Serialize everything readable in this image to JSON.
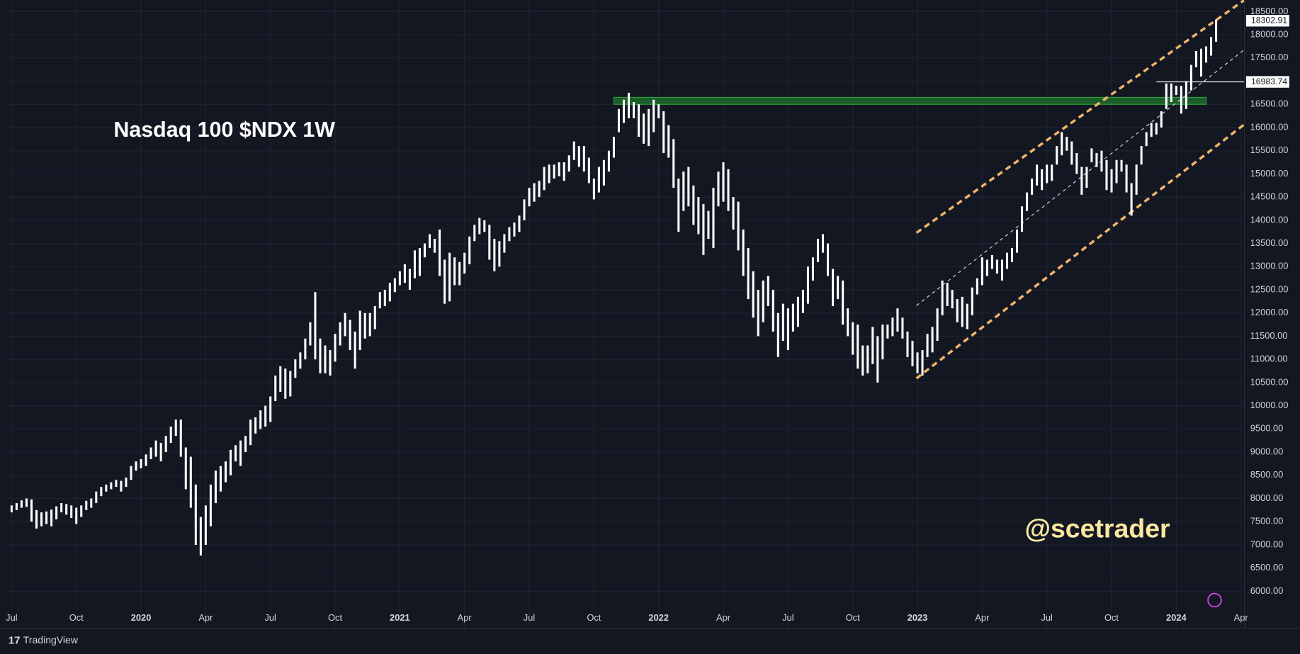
{
  "chart_data": {
    "type": "range-bar",
    "title": "Nasdaq 100 $NDX 1W",
    "watermark": "@scetrader",
    "brand": "TradingView",
    "background": "#131722",
    "bar_color": "#ffffff",
    "grid": true,
    "xlim": [
      -1,
      247.7
    ],
    "ylim": [
      5200,
      18750
    ],
    "xticks": [
      {
        "value": 0,
        "label": "Jul"
      },
      {
        "value": 13,
        "label": "Oct"
      },
      {
        "value": 26,
        "label": "2020"
      },
      {
        "value": 39,
        "label": "Apr"
      },
      {
        "value": 52,
        "label": "Jul"
      },
      {
        "value": 65,
        "label": "Oct"
      },
      {
        "value": 78,
        "label": "2021"
      },
      {
        "value": 91,
        "label": "Apr"
      },
      {
        "value": 104,
        "label": "Jul"
      },
      {
        "value": 117,
        "label": "Oct"
      },
      {
        "value": 130,
        "label": "2022"
      },
      {
        "value": 143,
        "label": "Apr"
      },
      {
        "value": 156,
        "label": "Jul"
      },
      {
        "value": 169,
        "label": "Oct"
      },
      {
        "value": 182,
        "label": "2023"
      },
      {
        "value": 195,
        "label": "Apr"
      },
      {
        "value": 208,
        "label": "Jul"
      },
      {
        "value": 221,
        "label": "Oct"
      },
      {
        "value": 234,
        "label": "2024"
      },
      {
        "value": 247,
        "label": "Apr"
      }
    ],
    "yticks": [
      {
        "value": 6000,
        "label": "6000.00"
      },
      {
        "value": 6500,
        "label": "6500.00"
      },
      {
        "value": 7000,
        "label": "7000.00"
      },
      {
        "value": 7500,
        "label": "7500.00"
      },
      {
        "value": 8000,
        "label": "8000.00"
      },
      {
        "value": 8500,
        "label": "8500.00"
      },
      {
        "value": 9000,
        "label": "9000.00"
      },
      {
        "value": 9500,
        "label": "9500.00"
      },
      {
        "value": 10000,
        "label": "10000.00"
      },
      {
        "value": 10500,
        "label": "10500.00"
      },
      {
        "value": 11000,
        "label": "11000.00"
      },
      {
        "value": 11500,
        "label": "11500.00"
      },
      {
        "value": 12000,
        "label": "12000.00"
      },
      {
        "value": 12500,
        "label": "12500.00"
      },
      {
        "value": 13000,
        "label": "13000.00"
      },
      {
        "value": 13500,
        "label": "13500.00"
      },
      {
        "value": 14000,
        "label": "14000.00"
      },
      {
        "value": 14500,
        "label": "14500.00"
      },
      {
        "value": 15000,
        "label": "15000.00"
      },
      {
        "value": 15500,
        "label": "15500.00"
      },
      {
        "value": 16000,
        "label": "16000.00"
      },
      {
        "value": 16500,
        "label": "16500.00"
      },
      {
        "value": 17000,
        "label": "17000.00"
      },
      {
        "value": 17500,
        "label": "17500.00"
      },
      {
        "value": 18000,
        "label": "18000.00"
      },
      {
        "value": 18500,
        "label": "18500.00"
      }
    ],
    "ranges": [
      [
        7700,
        7850
      ],
      [
        7750,
        7900
      ],
      [
        7800,
        7960
      ],
      [
        7820,
        8000
      ],
      [
        7500,
        7980
      ],
      [
        7350,
        7750
      ],
      [
        7400,
        7700
      ],
      [
        7450,
        7720
      ],
      [
        7400,
        7760
      ],
      [
        7550,
        7830
      ],
      [
        7700,
        7900
      ],
      [
        7650,
        7880
      ],
      [
        7580,
        7850
      ],
      [
        7450,
        7800
      ],
      [
        7600,
        7850
      ],
      [
        7750,
        7950
      ],
      [
        7800,
        8000
      ],
      [
        7900,
        8150
      ],
      [
        8050,
        8250
      ],
      [
        8150,
        8300
      ],
      [
        8200,
        8350
      ],
      [
        8250,
        8400
      ],
      [
        8150,
        8380
      ],
      [
        8250,
        8450
      ],
      [
        8400,
        8700
      ],
      [
        8600,
        8800
      ],
      [
        8650,
        8850
      ],
      [
        8700,
        8950
      ],
      [
        8850,
        9100
      ],
      [
        8900,
        9250
      ],
      [
        8800,
        9200
      ],
      [
        9000,
        9350
      ],
      [
        9200,
        9550
      ],
      [
        9350,
        9700
      ],
      [
        8900,
        9700
      ],
      [
        8200,
        9100
      ],
      [
        7800,
        8900
      ],
      [
        7000,
        8300
      ],
      [
        6770,
        7600
      ],
      [
        7000,
        7850
      ],
      [
        7400,
        8300
      ],
      [
        7900,
        8600
      ],
      [
        8150,
        8700
      ],
      [
        8350,
        8800
      ],
      [
        8500,
        9050
      ],
      [
        8800,
        9150
      ],
      [
        8700,
        9250
      ],
      [
        9000,
        9350
      ],
      [
        9150,
        9700
      ],
      [
        9400,
        9750
      ],
      [
        9500,
        9900
      ],
      [
        9550,
        10000
      ],
      [
        9650,
        10200
      ],
      [
        10100,
        10650
      ],
      [
        10300,
        10850
      ],
      [
        10150,
        10800
      ],
      [
        10200,
        10750
      ],
      [
        10600,
        11000
      ],
      [
        10800,
        11150
      ],
      [
        11000,
        11450
      ],
      [
        11300,
        11800
      ],
      [
        11000,
        12450
      ],
      [
        10700,
        11450
      ],
      [
        10700,
        11300
      ],
      [
        10650,
        11200
      ],
      [
        10950,
        11550
      ],
      [
        11300,
        11800
      ],
      [
        11500,
        12000
      ],
      [
        11200,
        11850
      ],
      [
        10800,
        11600
      ],
      [
        11200,
        12050
      ],
      [
        11450,
        12000
      ],
      [
        11500,
        12000
      ],
      [
        11650,
        12150
      ],
      [
        12100,
        12450
      ],
      [
        12150,
        12500
      ],
      [
        12250,
        12650
      ],
      [
        12450,
        12750
      ],
      [
        12600,
        12900
      ],
      [
        12650,
        13050
      ],
      [
        12500,
        12950
      ],
      [
        12750,
        13350
      ],
      [
        12800,
        13400
      ],
      [
        13200,
        13500
      ],
      [
        13400,
        13700
      ],
      [
        13300,
        13600
      ],
      [
        12800,
        13800
      ],
      [
        12200,
        13150
      ],
      [
        12250,
        13300
      ],
      [
        12600,
        13200
      ],
      [
        12600,
        13100
      ],
      [
        12850,
        13300
      ],
      [
        13050,
        13650
      ],
      [
        13550,
        13900
      ],
      [
        13700,
        14050
      ],
      [
        13750,
        14000
      ],
      [
        13150,
        13900
      ],
      [
        12900,
        13600
      ],
      [
        13000,
        13550
      ],
      [
        13300,
        13700
      ],
      [
        13550,
        13850
      ],
      [
        13650,
        13950
      ],
      [
        13750,
        14100
      ],
      [
        14000,
        14450
      ],
      [
        14300,
        14700
      ],
      [
        14400,
        14800
      ],
      [
        14500,
        14850
      ],
      [
        14650,
        15150
      ],
      [
        14800,
        15200
      ],
      [
        14900,
        15200
      ],
      [
        14950,
        15250
      ],
      [
        14850,
        15250
      ],
      [
        15050,
        15400
      ],
      [
        15300,
        15700
      ],
      [
        15150,
        15600
      ],
      [
        15050,
        15600
      ],
      [
        14800,
        15350
      ],
      [
        14450,
        14900
      ],
      [
        14600,
        15150
      ],
      [
        14750,
        15300
      ],
      [
        15050,
        15500
      ],
      [
        15350,
        15800
      ],
      [
        15900,
        16400
      ],
      [
        16100,
        16600
      ],
      [
        16200,
        16750
      ],
      [
        16200,
        16550
      ],
      [
        15800,
        16500
      ],
      [
        15650,
        16300
      ],
      [
        15600,
        16400
      ],
      [
        15900,
        16600
      ],
      [
        16200,
        16500
      ],
      [
        15450,
        16350
      ],
      [
        15350,
        16050
      ],
      [
        14700,
        15750
      ],
      [
        13750,
        14900
      ],
      [
        14200,
        15050
      ],
      [
        14300,
        15150
      ],
      [
        13900,
        14750
      ],
      [
        13700,
        14500
      ],
      [
        13250,
        14350
      ],
      [
        13600,
        14200
      ],
      [
        13400,
        14700
      ],
      [
        14300,
        15050
      ],
      [
        14400,
        15250
      ],
      [
        14200,
        15100
      ],
      [
        13800,
        14500
      ],
      [
        13350,
        14400
      ],
      [
        12800,
        13800
      ],
      [
        12300,
        13400
      ],
      [
        11900,
        12900
      ],
      [
        11500,
        12500
      ],
      [
        11800,
        12700
      ],
      [
        12150,
        12800
      ],
      [
        11600,
        12500
      ],
      [
        11050,
        12000
      ],
      [
        11400,
        12200
      ],
      [
        11200,
        12100
      ],
      [
        11600,
        12200
      ],
      [
        11700,
        12350
      ],
      [
        12000,
        12500
      ],
      [
        12200,
        13000
      ],
      [
        12700,
        13200
      ],
      [
        13100,
        13600
      ],
      [
        13300,
        13700
      ],
      [
        12800,
        13500
      ],
      [
        12150,
        12950
      ],
      [
        12300,
        12800
      ],
      [
        11750,
        12700
      ],
      [
        11500,
        12100
      ],
      [
        11100,
        11800
      ],
      [
        10800,
        11750
      ],
      [
        10650,
        11300
      ],
      [
        10700,
        11300
      ],
      [
        10900,
        11700
      ],
      [
        10500,
        11500
      ],
      [
        11000,
        11750
      ],
      [
        11450,
        11750
      ],
      [
        11500,
        11900
      ],
      [
        11600,
        12100
      ],
      [
        11450,
        11900
      ],
      [
        11050,
        11600
      ],
      [
        10850,
        11400
      ],
      [
        10700,
        11150
      ],
      [
        10650,
        11200
      ],
      [
        11050,
        11550
      ],
      [
        11150,
        11700
      ],
      [
        11400,
        12100
      ],
      [
        11950,
        12700
      ],
      [
        12150,
        12650
      ],
      [
        12100,
        12500
      ],
      [
        11800,
        12300
      ],
      [
        11700,
        12350
      ],
      [
        11650,
        12200
      ],
      [
        11950,
        12550
      ],
      [
        12400,
        12750
      ],
      [
        12600,
        13200
      ],
      [
        12800,
        13150
      ],
      [
        12950,
        13250
      ],
      [
        12850,
        13150
      ],
      [
        12700,
        13150
      ],
      [
        12950,
        13300
      ],
      [
        13100,
        13400
      ],
      [
        13300,
        13800
      ],
      [
        13750,
        14300
      ],
      [
        14200,
        14600
      ],
      [
        14550,
        14900
      ],
      [
        14750,
        15200
      ],
      [
        14650,
        15100
      ],
      [
        14800,
        15200
      ],
      [
        14850,
        15200
      ],
      [
        15200,
        15600
      ],
      [
        15400,
        15900
      ],
      [
        15500,
        15800
      ],
      [
        15200,
        15700
      ],
      [
        15000,
        15450
      ],
      [
        14550,
        15150
      ],
      [
        14700,
        15150
      ],
      [
        15250,
        15550
      ],
      [
        15150,
        15450
      ],
      [
        15050,
        15500
      ],
      [
        14650,
        15300
      ],
      [
        14600,
        15100
      ],
      [
        14800,
        15300
      ],
      [
        15050,
        15300
      ],
      [
        14600,
        15200
      ],
      [
        14100,
        14800
      ],
      [
        14550,
        15200
      ],
      [
        15200,
        15600
      ],
      [
        15600,
        15900
      ],
      [
        15800,
        16100
      ],
      [
        15850,
        16100
      ],
      [
        16000,
        16350
      ],
      [
        16400,
        16950
      ],
      [
        16550,
        16950
      ],
      [
        16700,
        16900
      ],
      [
        16300,
        16900
      ],
      [
        16400,
        17000
      ],
      [
        16800,
        17350
      ],
      [
        17300,
        17650
      ],
      [
        17100,
        17700
      ],
      [
        17400,
        17750
      ],
      [
        17550,
        17950
      ],
      [
        17850,
        18330
      ]
    ],
    "zone": {
      "x": [
        121,
        240
      ],
      "y": [
        16500,
        16650
      ],
      "color": "#1e6b2a"
    },
    "hline": {
      "value": 16983.74,
      "x": 230
    },
    "last_price": 18302.91,
    "trendlines": [
      {
        "x": [
          181.8,
          247.7
        ],
        "y": [
          13730,
          18750
        ],
        "color": "#f0b46a",
        "style": "dashed"
      },
      {
        "x": [
          181.8,
          247.7
        ],
        "y": [
          10590,
          16070
        ],
        "color": "#f0b46a",
        "style": "dashed"
      },
      {
        "x": [
          181.8,
          247.7
        ],
        "y": [
          12160,
          17680
        ],
        "color": "#d1d4dc",
        "style": "dotted"
      }
    ]
  }
}
